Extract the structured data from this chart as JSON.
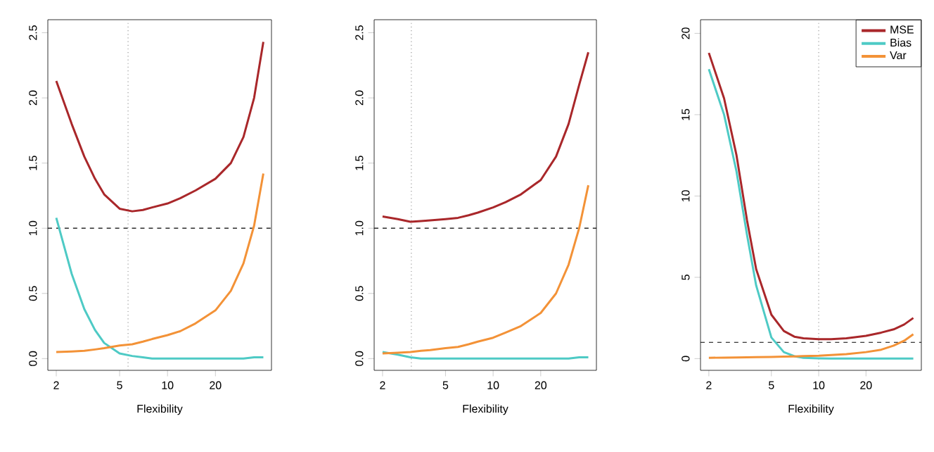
{
  "chart_data": [
    {
      "type": "line",
      "xlabel": "Flexibility",
      "log": "x",
      "xlim": [
        1.77,
        45
      ],
      "ylim": [
        -0.09,
        2.6
      ],
      "xticks": [
        2,
        5,
        10,
        20
      ],
      "yticks": [
        {
          "value": 0,
          "label": "0.0"
        },
        {
          "value": 0.5,
          "label": "0.5"
        },
        {
          "value": 1,
          "label": "1.0"
        },
        {
          "value": 1.5,
          "label": "1.5"
        },
        {
          "value": 2,
          "label": "2.0"
        },
        {
          "value": 2.5,
          "label": "2.5"
        }
      ],
      "x": [
        2,
        2.5,
        3,
        3.5,
        4,
        5,
        6,
        7,
        8,
        10,
        12,
        15,
        20,
        25,
        30,
        35,
        40
      ],
      "series": [
        {
          "color": "#a9272a",
          "values": [
            2.13,
            1.8,
            1.55,
            1.38,
            1.26,
            1.15,
            1.13,
            1.14,
            1.16,
            1.19,
            1.23,
            1.29,
            1.38,
            1.5,
            1.7,
            2.0,
            2.43
          ]
        },
        {
          "color": "#4ecac5",
          "values": [
            1.08,
            0.65,
            0.38,
            0.22,
            0.12,
            0.04,
            0.02,
            0.01,
            0.0,
            0.0,
            0.0,
            0.0,
            0.0,
            0.0,
            0.0,
            0.01,
            0.01
          ]
        },
        {
          "color": "#f39237",
          "values": [
            0.05,
            0.055,
            0.06,
            0.07,
            0.08,
            0.1,
            0.11,
            0.13,
            0.15,
            0.18,
            0.21,
            0.27,
            0.37,
            0.52,
            0.73,
            1.02,
            1.42
          ]
        }
      ],
      "ref_lines": [
        {
          "axis": "x",
          "value": 5.65,
          "color": "#999999",
          "line_style": "dotted"
        },
        {
          "axis": "y",
          "value": 1,
          "color": "#000000",
          "line_style": "dashed"
        }
      ],
      "legend": false,
      "grid": false
    },
    {
      "type": "line",
      "xlabel": "Flexibility",
      "log": "x",
      "xlim": [
        1.77,
        45
      ],
      "ylim": [
        -0.09,
        2.6
      ],
      "xticks": [
        2,
        5,
        10,
        20
      ],
      "yticks": [
        {
          "value": 0,
          "label": "0.0"
        },
        {
          "value": 0.5,
          "label": "0.5"
        },
        {
          "value": 1,
          "label": "1.0"
        },
        {
          "value": 1.5,
          "label": "1.5"
        },
        {
          "value": 2,
          "label": "2.0"
        },
        {
          "value": 2.5,
          "label": "2.5"
        }
      ],
      "x": [
        2,
        2.5,
        3,
        3.5,
        4,
        5,
        6,
        7,
        8,
        10,
        12,
        15,
        20,
        25,
        30,
        35,
        40
      ],
      "series": [
        {
          "color": "#a9272a",
          "values": [
            1.09,
            1.07,
            1.05,
            1.055,
            1.06,
            1.07,
            1.08,
            1.1,
            1.12,
            1.16,
            1.2,
            1.26,
            1.37,
            1.55,
            1.8,
            2.1,
            2.35
          ]
        },
        {
          "color": "#4ecac5",
          "values": [
            0.05,
            0.03,
            0.01,
            0.0,
            0.0,
            0.0,
            0.0,
            0.0,
            0.0,
            0.0,
            0.0,
            0.0,
            0.0,
            0.0,
            0.0,
            0.01,
            0.01
          ]
        },
        {
          "color": "#f39237",
          "values": [
            0.04,
            0.045,
            0.05,
            0.06,
            0.065,
            0.08,
            0.09,
            0.11,
            0.13,
            0.16,
            0.2,
            0.25,
            0.35,
            0.5,
            0.72,
            1.0,
            1.33
          ]
        }
      ],
      "ref_lines": [
        {
          "axis": "x",
          "value": 3.04,
          "color": "#999999",
          "line_style": "dotted"
        },
        {
          "axis": "y",
          "value": 1,
          "color": "#000000",
          "line_style": "dashed"
        }
      ],
      "legend": false,
      "grid": false
    },
    {
      "type": "line",
      "xlabel": "Flexibility",
      "log": "x",
      "xlim": [
        1.77,
        45
      ],
      "ylim": [
        -0.72,
        20.84
      ],
      "xticks": [
        2,
        5,
        10,
        20
      ],
      "yticks": [
        0,
        5,
        10,
        15,
        20
      ],
      "x": [
        2,
        2.5,
        3,
        3.5,
        4,
        5,
        6,
        7,
        8,
        10,
        12,
        15,
        20,
        25,
        30,
        35,
        40
      ],
      "series": [
        {
          "name": "MSE",
          "color": "#a9272a",
          "values": [
            18.8,
            16,
            12.5,
            8.5,
            5.5,
            2.7,
            1.7,
            1.35,
            1.25,
            1.2,
            1.2,
            1.25,
            1.4,
            1.6,
            1.8,
            2.1,
            2.5
          ]
        },
        {
          "name": "Bias",
          "color": "#4ecac5",
          "values": [
            17.8,
            15,
            11.5,
            7.6,
            4.5,
            1.3,
            0.4,
            0.15,
            0.05,
            0.02,
            0.0,
            0.0,
            0.0,
            0.0,
            0.0,
            0.0,
            0.0
          ]
        },
        {
          "name": "Var",
          "color": "#f39237",
          "values": [
            0.05,
            0.06,
            0.07,
            0.08,
            0.09,
            0.1,
            0.12,
            0.14,
            0.16,
            0.18,
            0.22,
            0.28,
            0.4,
            0.55,
            0.8,
            1.1,
            1.5
          ]
        }
      ],
      "ref_lines": [
        {
          "axis": "x",
          "value": 10,
          "color": "#999999",
          "line_style": "dotted"
        },
        {
          "axis": "y",
          "value": 1,
          "color": "#000000",
          "line_style": "dashed"
        }
      ],
      "legend": "top right",
      "grid": false
    }
  ]
}
